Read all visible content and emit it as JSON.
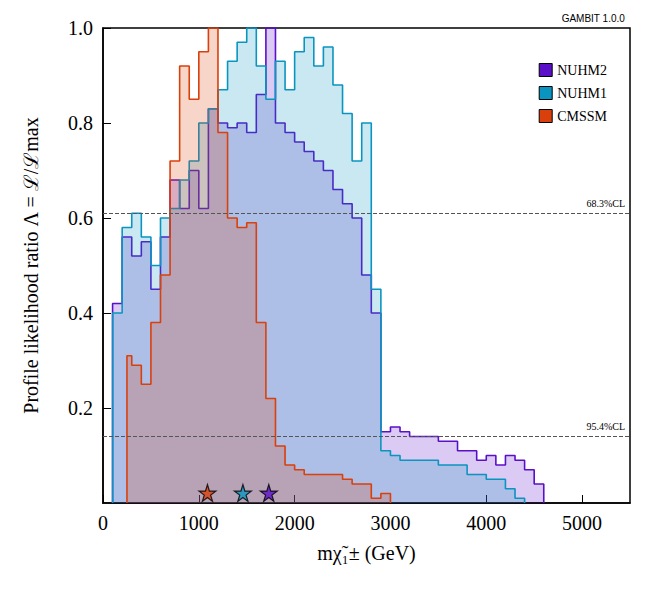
{
  "chart_data": {
    "type": "histogram",
    "title": "GAMBIT 1.0.0",
    "x_label": "mχ̃₁± (GeV)",
    "y_label": "Profile likelihood ratio Λ = ℒ/ℒmax",
    "xlim": [
      0,
      5500
    ],
    "xticks": [
      0,
      1000,
      2000,
      3000,
      4000,
      5000
    ],
    "ylim": [
      0,
      1
    ],
    "yticks": [
      0.2,
      0.4,
      0.6,
      0.8,
      {
        "value": 1,
        "label": "1.0"
      }
    ],
    "legend": "top-right",
    "grid": false,
    "reference_lines": [
      {
        "value": 0.607,
        "label": "68.3%CL"
      },
      {
        "value": 0.135,
        "label": "95.4%CL"
      }
    ],
    "series": [
      {
        "name": "NUHM2",
        "color": "#5a0fc8",
        "best_fit": 1730,
        "bins": [
          100,
          200,
          300,
          400,
          500,
          600,
          700,
          800,
          900,
          1000,
          1100,
          1200,
          1300,
          1400,
          1500,
          1600,
          1700,
          1800,
          1900,
          2000,
          2100,
          2200,
          2300,
          2400,
          2500,
          2600,
          2700,
          2800,
          2900,
          3000,
          3100,
          3200,
          3300,
          3400,
          3500,
          3600,
          3700,
          3800,
          3900,
          4000,
          4100,
          4200,
          4300,
          4400,
          4500,
          4600
        ],
        "values": [
          0.42,
          0.56,
          0.52,
          0.55,
          0.45,
          0.56,
          0.68,
          0.62,
          0.7,
          0.62,
          0.83,
          0.8,
          0.79,
          0.8,
          0.78,
          0.86,
          1.0,
          0.8,
          0.78,
          0.76,
          0.74,
          0.72,
          0.7,
          0.66,
          0.63,
          0.6,
          0.48,
          0.4,
          0.15,
          0.16,
          0.15,
          0.14,
          0.14,
          0.14,
          0.13,
          0.13,
          0.11,
          0.11,
          0.09,
          0.1,
          0.08,
          0.1,
          0.09,
          0.07,
          0.04
        ]
      },
      {
        "name": "NUHM1",
        "color": "#0a95c0",
        "best_fit": 1460,
        "bins": [
          100,
          200,
          300,
          400,
          500,
          600,
          700,
          800,
          900,
          1000,
          1100,
          1200,
          1300,
          1400,
          1500,
          1600,
          1700,
          1800,
          1900,
          2000,
          2100,
          2200,
          2300,
          2400,
          2500,
          2600,
          2700,
          2800,
          2900,
          3000,
          3100,
          3200,
          3300,
          3400,
          3500,
          3600,
          3700,
          3800,
          3900,
          4000,
          4100,
          4200,
          4300,
          4400
        ],
        "values": [
          0.4,
          0.58,
          0.61,
          0.56,
          0.5,
          0.6,
          0.62,
          0.68,
          0.72,
          0.8,
          0.83,
          0.87,
          0.93,
          0.97,
          1.0,
          0.92,
          0.85,
          0.93,
          0.87,
          0.95,
          0.98,
          0.92,
          0.96,
          0.88,
          0.82,
          0.72,
          0.8,
          0.45,
          0.11,
          0.1,
          0.09,
          0.09,
          0.09,
          0.09,
          0.08,
          0.08,
          0.08,
          0.06,
          0.06,
          0.05,
          0.05,
          0.03,
          0.01
        ]
      },
      {
        "name": "CMSSM",
        "color": "#d9400b",
        "best_fit": 1090,
        "bins": [
          250,
          300,
          400,
          500,
          600,
          700,
          800,
          900,
          1000,
          1100,
          1200,
          1300,
          1400,
          1500,
          1600,
          1700,
          1800,
          1900,
          2000,
          2100,
          2200,
          2300,
          2400,
          2500,
          2600,
          2700,
          2800,
          2900,
          3000
        ],
        "values": [
          0.31,
          0.29,
          0.25,
          0.38,
          0.48,
          0.72,
          0.92,
          0.85,
          0.95,
          1.0,
          0.78,
          0.6,
          0.58,
          0.59,
          0.38,
          0.22,
          0.12,
          0.08,
          0.07,
          0.06,
          0.06,
          0.06,
          0.06,
          0.05,
          0.04,
          0.04,
          0.01,
          0.02
        ]
      }
    ]
  }
}
